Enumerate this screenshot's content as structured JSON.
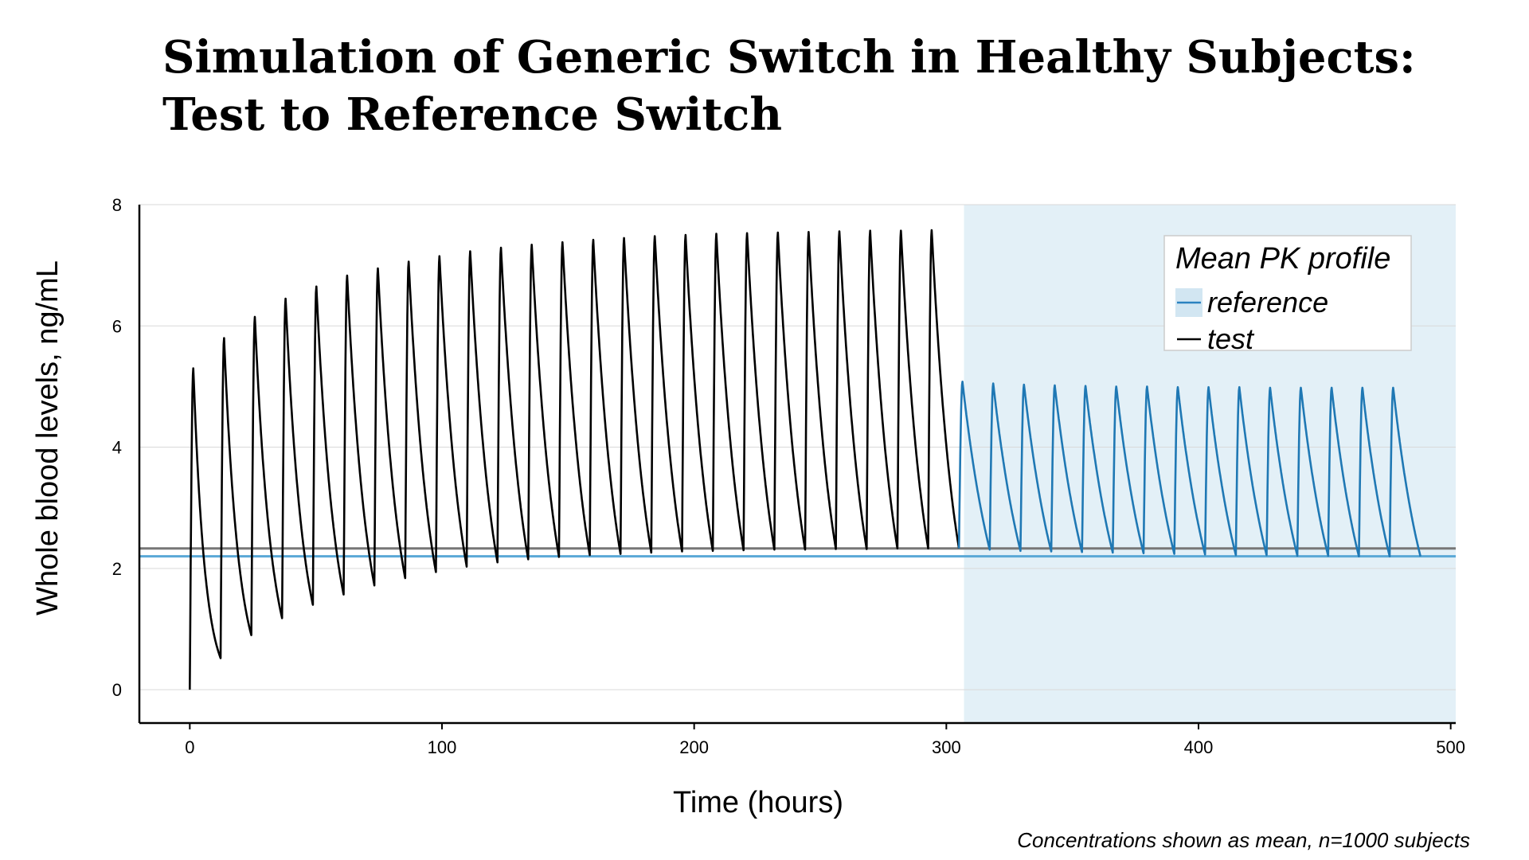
{
  "chart_data": {
    "type": "line",
    "title": [
      "Simulation of Generic Switch in Healthy Subjects:",
      "Test to Reference Switch"
    ],
    "xlabel": "Time (hours)",
    "ylabel": "Whole blood levels, ng/mL",
    "xlim": [
      -20,
      502
    ],
    "ylim": [
      -0.55,
      8
    ],
    "x_ticks": [
      0,
      100,
      200,
      300,
      400,
      500
    ],
    "y_ticks": [
      0,
      2,
      4,
      6,
      8
    ],
    "grid": "horizontal",
    "legend": {
      "title": "Mean PK profile",
      "placement": "top-right",
      "entries": [
        {
          "label": "reference",
          "color": "#2b82c0"
        },
        {
          "label": "test",
          "color": "#000000"
        }
      ]
    },
    "shaded_region": {
      "x": [
        307,
        502
      ],
      "color": "#e3f0f7"
    },
    "reference_lines": [
      {
        "y": 2.33,
        "color": "#777777",
        "description": "test trough level"
      },
      {
        "y": 2.2,
        "color": "#5aa8d6",
        "description": "reference trough level"
      }
    ],
    "dosing_interval_hours": 12.2,
    "series": [
      {
        "name": "test",
        "color": "#000000",
        "dose_times": [
          0,
          12.2,
          24.4,
          36.6,
          48.8,
          61,
          73.2,
          85.4,
          97.6,
          109.8,
          122,
          134.2,
          146.4,
          158.6,
          170.8,
          183,
          195.2,
          207.4,
          219.6,
          231.8,
          244,
          256.2,
          268.4,
          280.6,
          292.8
        ],
        "peaks": [
          5.3,
          5.8,
          6.15,
          6.45,
          6.65,
          6.83,
          6.95,
          7.06,
          7.15,
          7.23,
          7.29,
          7.34,
          7.38,
          7.42,
          7.45,
          7.48,
          7.5,
          7.52,
          7.53,
          7.54,
          7.55,
          7.56,
          7.57,
          7.57,
          7.58
        ],
        "troughs": [
          0.52,
          0.9,
          1.18,
          1.4,
          1.57,
          1.72,
          1.84,
          1.94,
          2.03,
          2.1,
          2.15,
          2.19,
          2.22,
          2.24,
          2.26,
          2.28,
          2.29,
          2.3,
          2.31,
          2.31,
          2.32,
          2.32,
          2.33,
          2.33,
          2.33
        ]
      },
      {
        "name": "reference",
        "color": "#1f78b4",
        "dose_times": [
          305,
          317.2,
          329.4,
          341.6,
          353.8,
          366,
          378.2,
          390.4,
          402.6,
          414.8,
          427,
          439.2,
          451.4,
          463.6,
          475.8
        ],
        "peaks": [
          5.08,
          5.05,
          5.03,
          5.02,
          5.01,
          5.0,
          5.0,
          4.99,
          4.99,
          4.99,
          4.98,
          4.98,
          4.98,
          4.98,
          4.98
        ],
        "troughs": [
          2.31,
          2.29,
          2.28,
          2.27,
          2.26,
          2.25,
          2.24,
          2.23,
          2.22,
          2.22,
          2.21,
          2.21,
          2.2,
          2.2,
          2.2
        ]
      }
    ],
    "footnote": "Concentrations shown as mean, n=1000 subjects"
  }
}
